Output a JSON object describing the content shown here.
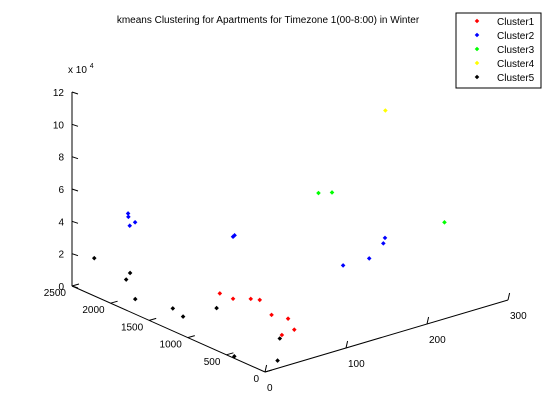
{
  "chart_data": {
    "type": "scatter",
    "title": "kmeans Clustering for   Apartments for Timezone 1(00-8:00) in Winter",
    "xlabel": "",
    "ylabel": "",
    "zlabel": "",
    "x_axis": {
      "range": [
        0,
        300
      ],
      "ticks": [
        "0",
        "100",
        "200",
        "300"
      ]
    },
    "y_axis": {
      "range": [
        0,
        2500
      ],
      "ticks": [
        "0",
        "500",
        "1000",
        "1500",
        "2000",
        "2500"
      ]
    },
    "z_axis": {
      "range": [
        0,
        120000
      ],
      "ticks": [
        "0",
        "2",
        "4",
        "6",
        "8",
        "10",
        "12"
      ],
      "exponent_label": "x 10",
      "exponent": "4"
    },
    "legend": {
      "position": "top-right",
      "entries": [
        "Cluster1",
        "Cluster2",
        "Cluster3",
        "Cluster4",
        "Cluster5"
      ]
    },
    "series": [
      {
        "name": "Cluster1",
        "color": "#ff0000",
        "points": [
          [
            30,
            900,
            25000
          ],
          [
            39,
            823,
            22000
          ],
          [
            60,
            814,
            19000
          ],
          [
            73,
            834,
            16000
          ],
          [
            73,
            681,
            10000
          ],
          [
            79,
            530,
            10000
          ],
          [
            76,
            418,
            6000
          ],
          [
            66,
            474,
            3000
          ]
        ]
      },
      {
        "name": "Cluster2",
        "color": "#0000ff",
        "points": [
          [
            17,
            1952,
            54000
          ],
          [
            17,
            1948,
            52000
          ],
          [
            14,
            1899,
            48000
          ],
          [
            21,
            1903,
            49000
          ],
          [
            65,
            1076,
            52000
          ],
          [
            75,
            1201,
            47000
          ],
          [
            168,
            751,
            25000
          ],
          [
            199,
            738,
            25000
          ],
          [
            213,
            702,
            33000
          ],
          [
            218,
            733,
            35000
          ]
        ]
      },
      {
        "name": "Cluster3",
        "color": "#00ff00",
        "points": [
          [
            168,
            1070,
            63000
          ],
          [
            179,
            1010,
            63000
          ],
          [
            288,
            697,
            35000
          ]
        ]
      },
      {
        "name": "Cluster4",
        "color": "#ffff00",
        "points": [
          [
            250,
            1064,
            102000
          ]
        ]
      },
      {
        "name": "Cluster5",
        "color": "#000000",
        "points": [
          [
            9,
            2306,
            20000
          ],
          [
            11,
            1863,
            20000
          ],
          [
            24,
            2050,
            10000
          ],
          [
            9,
            1775,
            6000
          ],
          [
            24,
            1446,
            5000
          ],
          [
            18,
            1250,
            5000
          ],
          [
            57,
            1225,
            5000
          ],
          [
            64,
            480,
            1000
          ],
          [
            3,
            429,
            100
          ],
          [
            28,
            131,
            100
          ]
        ]
      }
    ]
  }
}
